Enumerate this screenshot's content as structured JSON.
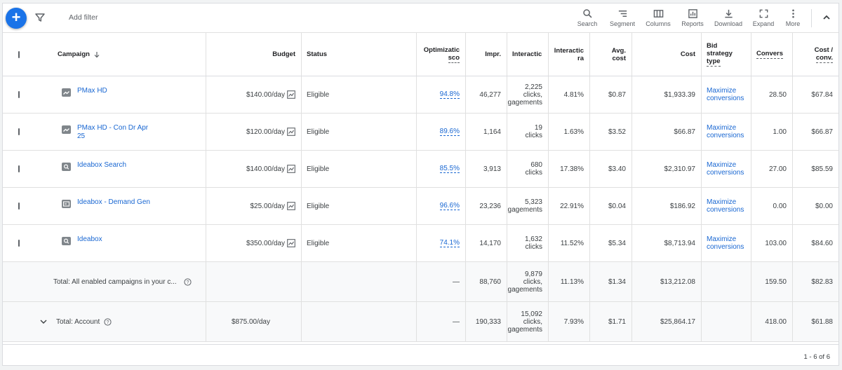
{
  "toolbar": {
    "add_filter": "Add filter",
    "buttons": [
      {
        "label": "Search",
        "icon": "search-icon"
      },
      {
        "label": "Segment",
        "icon": "segment-icon"
      },
      {
        "label": "Columns",
        "icon": "columns-icon"
      },
      {
        "label": "Reports",
        "icon": "reports-icon"
      },
      {
        "label": "Download",
        "icon": "download-icon"
      },
      {
        "label": "Expand",
        "icon": "expand-icon"
      },
      {
        "label": "More",
        "icon": "more-vert-icon"
      }
    ]
  },
  "colors": {
    "accent": "#1a73e8",
    "link": "#1967d2",
    "enabled": "#188038"
  },
  "table": {
    "headers": {
      "campaign": "Campaign",
      "budget": "Budget",
      "status": "Status",
      "optimization_1": "Optimizatic",
      "optimization_2": "sco",
      "impr": "Impr.",
      "interactions": "Interactic",
      "interaction_rate_1": "Interactic",
      "interaction_rate_2": "ra",
      "avg_cost_1": "Avg.",
      "avg_cost_2": "cost",
      "cost": "Cost",
      "bid_1": "Bid",
      "bid_2": "strategy",
      "bid_3": "type",
      "conversions": "Convers",
      "cost_conv_1": "Cost /",
      "cost_conv_2": "conv."
    },
    "rows": [
      {
        "name": "PMax HD",
        "name2": "",
        "type_icon": "pmax-icon",
        "budget": "$140.00/day",
        "status": "Eligible",
        "opt": "94.8%",
        "impr": "46,277",
        "inter1": "2,225",
        "inter2": "clicks,",
        "inter3": "gagements",
        "rate": "4.81%",
        "avg": "$0.87",
        "cost": "$1,933.39",
        "bid1": "Maximize",
        "bid2": "conversions",
        "conv": "28.50",
        "cpc": "$67.84"
      },
      {
        "name": "PMax HD - Con Dr Apr",
        "name2": "25",
        "type_icon": "pmax-icon",
        "budget": "$120.00/day",
        "status": "Eligible",
        "opt": "89.6%",
        "impr": "1,164",
        "inter1": "19",
        "inter2": "clicks",
        "inter3": "",
        "rate": "1.63%",
        "avg": "$3.52",
        "cost": "$66.87",
        "bid1": "Maximize",
        "bid2": "conversions",
        "conv": "1.00",
        "cpc": "$66.87"
      },
      {
        "name": "Ideabox Search",
        "name2": "",
        "type_icon": "search-campaign-icon",
        "budget": "$140.00/day",
        "status": "Eligible",
        "opt": "85.5%",
        "impr": "3,913",
        "inter1": "680",
        "inter2": "clicks",
        "inter3": "",
        "rate": "17.38%",
        "avg": "$3.40",
        "cost": "$2,310.97",
        "bid1": "Maximize",
        "bid2": "conversions",
        "conv": "27.00",
        "cpc": "$85.59"
      },
      {
        "name": "Ideabox - Demand Gen",
        "name2": "",
        "type_icon": "demand-gen-icon",
        "budget": "$25.00/day",
        "status": "Eligible",
        "opt": "96.6%",
        "impr": "23,236",
        "inter1": "5,323",
        "inter2": "gagements",
        "inter3": "",
        "rate": "22.91%",
        "avg": "$0.04",
        "cost": "$186.92",
        "bid1": "Maximize",
        "bid2": "conversions",
        "conv": "0.00",
        "cpc": "$0.00"
      },
      {
        "name": "Ideabox",
        "name2": "",
        "type_icon": "search-campaign-icon",
        "budget": "$350.00/day",
        "status": "Eligible",
        "opt": "74.1%",
        "impr": "14,170",
        "inter1": "1,632",
        "inter2": "clicks",
        "inter3": "",
        "rate": "11.52%",
        "avg": "$5.34",
        "cost": "$8,713.94",
        "bid1": "Maximize",
        "bid2": "conversions",
        "conv": "103.00",
        "cpc": "$84.60"
      }
    ],
    "total_enabled": {
      "label": "Total: All enabled campaigns in your c...",
      "opt": "—",
      "impr": "88,760",
      "inter1": "9,879",
      "inter2": "clicks,",
      "inter3": "gagements",
      "rate": "11.13%",
      "avg": "$1.34",
      "cost": "$13,212.08",
      "conv": "159.50",
      "cpc": "$82.83"
    },
    "total_account": {
      "label": "Total: Account",
      "budget": "$875.00/day",
      "opt": "—",
      "impr": "190,333",
      "inter1": "15,092",
      "inter2": "clicks,",
      "inter3": "gagements",
      "rate": "7.93%",
      "avg": "$1.71",
      "cost": "$25,864.17",
      "conv": "418.00",
      "cpc": "$61.88"
    }
  },
  "pager": "1 - 6 of 6"
}
